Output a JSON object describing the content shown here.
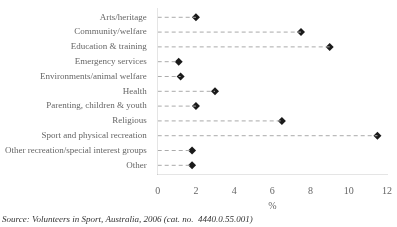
{
  "chart_data": {
    "type": "lollipop",
    "orientation": "horizontal",
    "categories": [
      "Arts/heritage",
      "Community/welfare",
      "Education & training",
      "Emergency services",
      "Environments/animal welfare",
      "Health",
      "Parenting, children & youth",
      "Religious",
      "Sport and physical recreation",
      "Other recreation/special interest groups",
      "Other"
    ],
    "values": [
      2.0,
      7.5,
      9.0,
      1.1,
      1.2,
      3.0,
      2.0,
      6.5,
      11.5,
      1.8,
      1.8
    ],
    "xlim": [
      0,
      12
    ],
    "xticks": [
      0,
      2,
      4,
      6,
      8,
      10,
      12
    ],
    "xlabel": "%",
    "marker": "diamond",
    "line_style": "dashed",
    "color": "#1a1a1a",
    "grid": false,
    "annotations": [
      "Source: Volunteers in Sport, Australia, 2006 (cat. no.  4440.0.55.001)"
    ]
  }
}
